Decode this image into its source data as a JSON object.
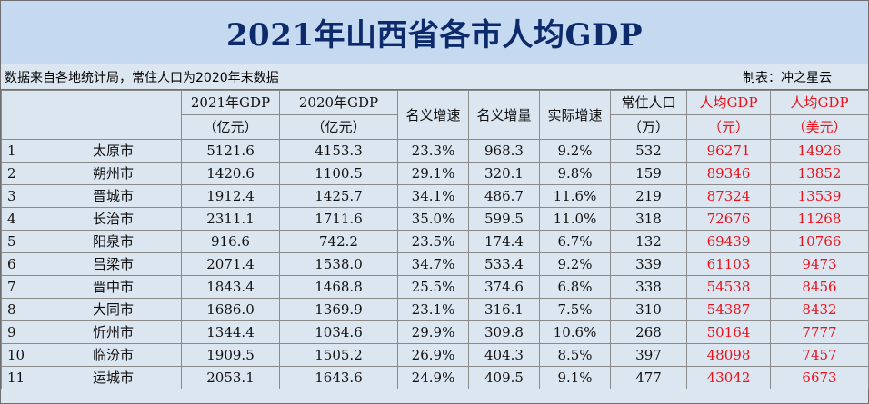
{
  "title": "2021年山西省各市人均GDP",
  "source_note": "数据来自各地统计局，常住人口为2020年末数据",
  "author_note": "制表：冲之星云",
  "headers": {
    "gdp2021_line1": "2021年GDP",
    "gdp2021_line2": "（亿元）",
    "gdp2020_line1": "2020年GDP",
    "gdp2020_line2": "（亿元）",
    "nominal_rate": "名义增速",
    "nominal_increase": "名义增量",
    "real_rate": "实际增速",
    "population_line1": "常住人口",
    "population_line2": "（万）",
    "per_cny_line1": "人均GDP",
    "per_cny_line2": "（元）",
    "per_usd_line1": "人均GDP",
    "per_usd_line2": "（美元）"
  },
  "accent_color": "#e8121b",
  "rows": [
    {
      "rank": "1",
      "city": "太原市",
      "gdp2021": "5121.6",
      "gdp2020": "4153.3",
      "nominal_rate": "23.3%",
      "increase": "968.3",
      "real_rate": "9.2%",
      "population": "532",
      "per_cny": "96271",
      "per_usd": "14926"
    },
    {
      "rank": "2",
      "city": "朔州市",
      "gdp2021": "1420.6",
      "gdp2020": "1100.5",
      "nominal_rate": "29.1%",
      "increase": "320.1",
      "real_rate": "9.8%",
      "population": "159",
      "per_cny": "89346",
      "per_usd": "13852"
    },
    {
      "rank": "3",
      "city": "晋城市",
      "gdp2021": "1912.4",
      "gdp2020": "1425.7",
      "nominal_rate": "34.1%",
      "increase": "486.7",
      "real_rate": "11.6%",
      "population": "219",
      "per_cny": "87324",
      "per_usd": "13539"
    },
    {
      "rank": "4",
      "city": "长治市",
      "gdp2021": "2311.1",
      "gdp2020": "1711.6",
      "nominal_rate": "35.0%",
      "increase": "599.5",
      "real_rate": "11.0%",
      "population": "318",
      "per_cny": "72676",
      "per_usd": "11268"
    },
    {
      "rank": "5",
      "city": "阳泉市",
      "gdp2021": "916.6",
      "gdp2020": "742.2",
      "nominal_rate": "23.5%",
      "increase": "174.4",
      "real_rate": "6.7%",
      "population": "132",
      "per_cny": "69439",
      "per_usd": "10766"
    },
    {
      "rank": "6",
      "city": "吕梁市",
      "gdp2021": "2071.4",
      "gdp2020": "1538.0",
      "nominal_rate": "34.7%",
      "increase": "533.4",
      "real_rate": "9.2%",
      "population": "339",
      "per_cny": "61103",
      "per_usd": "9473"
    },
    {
      "rank": "7",
      "city": "晋中市",
      "gdp2021": "1843.4",
      "gdp2020": "1468.8",
      "nominal_rate": "25.5%",
      "increase": "374.6",
      "real_rate": "6.8%",
      "population": "338",
      "per_cny": "54538",
      "per_usd": "8456"
    },
    {
      "rank": "8",
      "city": "大同市",
      "gdp2021": "1686.0",
      "gdp2020": "1369.9",
      "nominal_rate": "23.1%",
      "increase": "316.1",
      "real_rate": "7.5%",
      "population": "310",
      "per_cny": "54387",
      "per_usd": "8432"
    },
    {
      "rank": "9",
      "city": "忻州市",
      "gdp2021": "1344.4",
      "gdp2020": "1034.6",
      "nominal_rate": "29.9%",
      "increase": "309.8",
      "real_rate": "10.6%",
      "population": "268",
      "per_cny": "50164",
      "per_usd": "7777"
    },
    {
      "rank": "10",
      "city": "临汾市",
      "gdp2021": "1909.5",
      "gdp2020": "1505.2",
      "nominal_rate": "26.9%",
      "increase": "404.3",
      "real_rate": "8.5%",
      "population": "397",
      "per_cny": "48098",
      "per_usd": "7457"
    },
    {
      "rank": "11",
      "city": "运城市",
      "gdp2021": "2053.1",
      "gdp2020": "1643.6",
      "nominal_rate": "24.9%",
      "increase": "409.5",
      "real_rate": "9.1%",
      "population": "477",
      "per_cny": "43042",
      "per_usd": "6673"
    }
  ]
}
